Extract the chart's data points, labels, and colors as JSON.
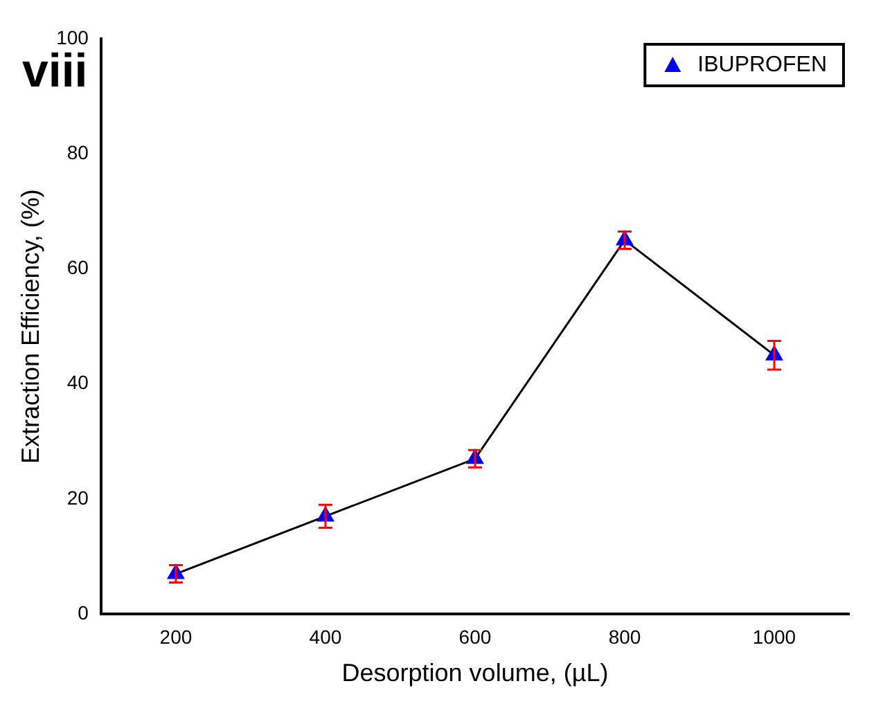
{
  "chart_data": {
    "type": "line",
    "xlabel": "Desorption volume, (µL)",
    "ylabel": "Extraction Efficiency, (%)",
    "annotations": [
      "viii"
    ],
    "x": [
      200,
      400,
      600,
      800,
      1000
    ],
    "series": [
      {
        "name": "IBUPROFEN",
        "color": "#0000ff",
        "values": [
          7,
          17,
          27,
          65,
          45
        ],
        "errors": [
          1.5,
          2,
          1.5,
          1.5,
          2.5
        ]
      }
    ],
    "xlim": [
      100,
      1100
    ],
    "xticks": [
      200,
      400,
      600,
      800,
      1000
    ],
    "ylim": [
      0,
      100
    ],
    "yticks": [
      0,
      20,
      40,
      60,
      80,
      100
    ],
    "grid": false,
    "legend": "top right",
    "marker": "triangle",
    "line_style": "solid"
  }
}
